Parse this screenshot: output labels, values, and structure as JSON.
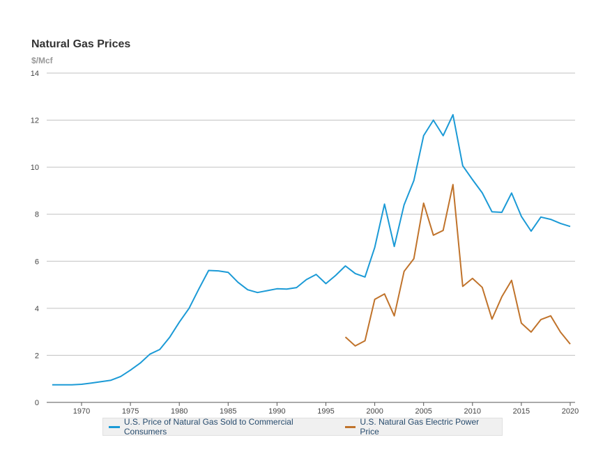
{
  "chart_data": {
    "type": "line",
    "title": "Natural Gas Prices",
    "ylabel": "$/Mcf",
    "xlabel": "",
    "ylim": [
      0,
      14
    ],
    "yticks": [
      0,
      2,
      4,
      6,
      8,
      10,
      12,
      14
    ],
    "xticks": [
      1970,
      1975,
      1980,
      1985,
      1990,
      1995,
      2000,
      2005,
      2010,
      2015,
      2020
    ],
    "grid": true,
    "legend_position": "bottom",
    "series": [
      {
        "name": "U.S. Price of Natural Gas Sold to Commercial Consumers",
        "color": "#1b9ad6",
        "x": [
          1967,
          1968,
          1969,
          1970,
          1971,
          1972,
          1973,
          1974,
          1975,
          1976,
          1977,
          1978,
          1979,
          1980,
          1981,
          1982,
          1983,
          1984,
          1985,
          1986,
          1987,
          1988,
          1989,
          1990,
          1991,
          1992,
          1993,
          1994,
          1995,
          1996,
          1997,
          1998,
          1999,
          2000,
          2001,
          2002,
          2003,
          2004,
          2005,
          2006,
          2007,
          2008,
          2009,
          2010,
          2011,
          2012,
          2013,
          2014,
          2015,
          2016,
          2017,
          2018,
          2019,
          2020
        ],
        "values": [
          0.75,
          0.75,
          0.75,
          0.77,
          0.82,
          0.88,
          0.94,
          1.1,
          1.37,
          1.67,
          2.05,
          2.25,
          2.76,
          3.41,
          4.0,
          4.82,
          5.61,
          5.59,
          5.53,
          5.11,
          4.79,
          4.67,
          4.75,
          4.83,
          4.82,
          4.88,
          5.22,
          5.44,
          5.05,
          5.4,
          5.8,
          5.48,
          5.33,
          6.59,
          8.43,
          6.63,
          8.4,
          9.43,
          11.34,
          12.0,
          11.34,
          12.23,
          10.06,
          9.47,
          8.91,
          8.1,
          8.08,
          8.9,
          7.91,
          7.28,
          7.88,
          7.78,
          7.61,
          7.48
        ]
      },
      {
        "name": "U.S. Natural Gas Electric Power Price",
        "color": "#c0732b",
        "x": [
          1997,
          1998,
          1999,
          2000,
          2001,
          2002,
          2003,
          2004,
          2005,
          2006,
          2007,
          2008,
          2009,
          2010,
          2011,
          2012,
          2013,
          2014,
          2015,
          2016,
          2017,
          2018,
          2019,
          2020
        ],
        "values": [
          2.78,
          2.4,
          2.62,
          4.38,
          4.61,
          3.68,
          5.57,
          6.11,
          8.47,
          7.11,
          7.31,
          9.26,
          4.93,
          5.27,
          4.89,
          3.54,
          4.49,
          5.19,
          3.37,
          2.99,
          3.52,
          3.68,
          2.99,
          2.48
        ]
      }
    ]
  }
}
